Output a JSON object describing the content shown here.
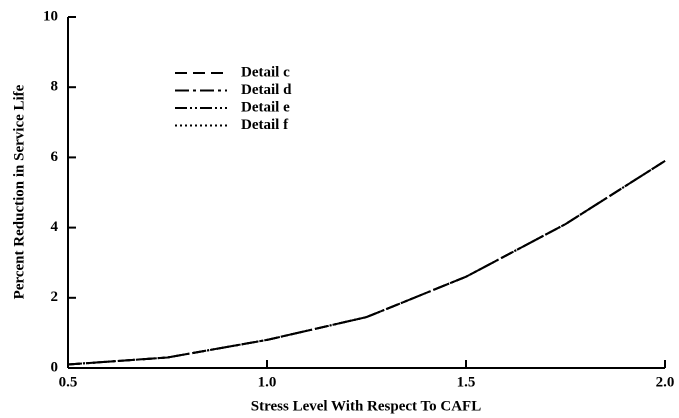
{
  "chart_data": {
    "type": "line",
    "x_label": "Stress Level With Respect To CAFL",
    "y_label": "Percent Reduction in Service Life",
    "x": [
      0.5,
      0.75,
      1.0,
      1.25,
      1.5,
      1.75,
      2.0
    ],
    "series": [
      {
        "name": "Detail c",
        "color": "#000000",
        "dash": "12,6",
        "values": [
          0.1,
          0.3,
          0.8,
          1.45,
          2.6,
          4.1,
          5.9
        ]
      },
      {
        "name": "Detail d",
        "color": "#000000",
        "dash": "14,4,3,4",
        "values": [
          0.1,
          0.3,
          0.8,
          1.45,
          2.6,
          4.1,
          5.9
        ]
      },
      {
        "name": "Detail e",
        "color": "#000000",
        "dash": "12,3,2,3,2,3",
        "values": [
          0.1,
          0.3,
          0.8,
          1.45,
          2.6,
          4.1,
          5.9
        ]
      },
      {
        "name": "Detail f",
        "color": "#000000",
        "dash": "2,3",
        "values": [
          0.1,
          0.3,
          0.8,
          1.45,
          2.6,
          4.1,
          5.9
        ]
      }
    ],
    "xlim": [
      0.5,
      2.0
    ],
    "xticks": [
      0.5,
      {
        "value": 1.0,
        "label": "1.0"
      },
      1.5,
      {
        "value": 2.0,
        "label": "2.0"
      }
    ],
    "ylim": [
      0,
      10
    ],
    "yticks": [
      0,
      2,
      4,
      6,
      8,
      10
    ],
    "grid": false,
    "legend_position": "upper-left"
  }
}
